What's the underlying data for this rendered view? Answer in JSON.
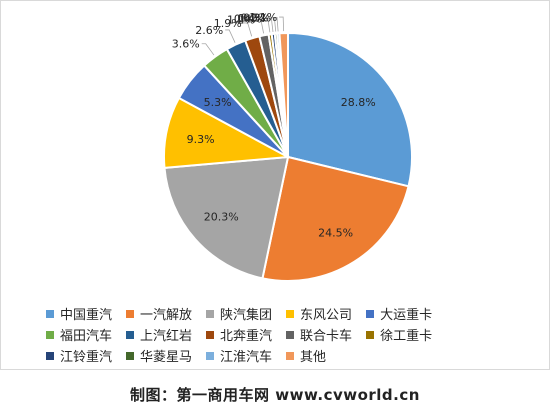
{
  "chart_data": {
    "type": "pie",
    "title": "",
    "slices": [
      {
        "label": "中国重汽",
        "value": 28.8,
        "display": "28.8%",
        "color": "#5B9BD5"
      },
      {
        "label": "一汽解放",
        "value": 24.5,
        "display": "24.5%",
        "color": "#ED7D31"
      },
      {
        "label": "陕汽集团",
        "value": 20.3,
        "display": "20.3%",
        "color": "#A5A5A5"
      },
      {
        "label": "东风公司",
        "value": 9.3,
        "display": "9.3%",
        "color": "#FFC000"
      },
      {
        "label": "大运重卡",
        "value": 5.3,
        "display": "5.3%",
        "color": "#4472C4"
      },
      {
        "label": "福田汽车",
        "value": 3.6,
        "display": "3.6%",
        "color": "#70AD47"
      },
      {
        "label": "上汽红岩",
        "value": 2.6,
        "display": "2.6%",
        "color": "#255E91"
      },
      {
        "label": "北奔重汽",
        "value": 1.9,
        "display": "1.9%",
        "color": "#9E480E"
      },
      {
        "label": "联合卡车",
        "value": 1.2,
        "display": "1.2%",
        "color": "#636363"
      },
      {
        "label": "徐工重卡",
        "value": 0.4,
        "display": "0.4%",
        "color": "#997300"
      },
      {
        "label": "江铃重汽",
        "value": 0.4,
        "display": "0.4%",
        "color": "#264478"
      },
      {
        "label": "华菱星马",
        "value": 0.3,
        "display": "0.3%",
        "color": "#43682B"
      },
      {
        "label": "江淮汽车",
        "value": 0.3,
        "display": "0.3%",
        "color": "#7CAFDD"
      },
      {
        "label": "其他",
        "value": 1.1,
        "display": "1.1%",
        "color": "#F1975A"
      }
    ],
    "legend_position": "bottom"
  },
  "footer": {
    "credit": "制图：第一商用车网 www.cvworld.cn"
  }
}
